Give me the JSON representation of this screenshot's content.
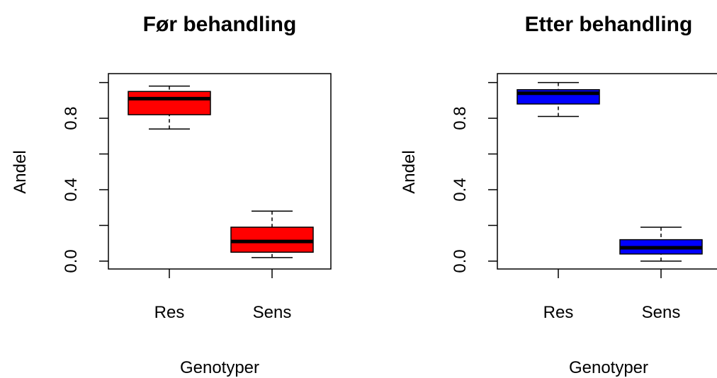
{
  "chart_data": [
    {
      "type": "boxplot",
      "title": "Før behandling",
      "xlabel": "Genotyper",
      "ylabel": "Andel",
      "categories": [
        "Res",
        "Sens"
      ],
      "color": "#ff0000",
      "boxes": [
        {
          "whislo": 0.74,
          "q1": 0.82,
          "med": 0.91,
          "q3": 0.95,
          "whishi": 0.98
        },
        {
          "whislo": 0.02,
          "q1": 0.05,
          "med": 0.11,
          "q3": 0.19,
          "whishi": 0.28
        }
      ],
      "ylim": [
        -0.044,
        1.05
      ],
      "yticks": [
        {
          "value": 0,
          "label": "0.0"
        },
        {
          "value": 0.2,
          "label": null
        },
        0.4,
        {
          "value": 0.6,
          "label": null
        },
        0.8,
        {
          "value": 1.0,
          "label": null
        }
      ]
    },
    {
      "type": "boxplot",
      "title": "Etter behandling",
      "xlabel": "Genotyper",
      "ylabel": "Andel",
      "categories": [
        "Res",
        "Sens"
      ],
      "color": "#0000ff",
      "boxes": [
        {
          "whislo": 0.81,
          "q1": 0.88,
          "med": 0.94,
          "q3": 0.96,
          "whishi": 1.0
        },
        {
          "whislo": 0.0,
          "q1": 0.04,
          "med": 0.075,
          "q3": 0.12,
          "whishi": 0.19
        }
      ],
      "ylim": [
        -0.044,
        1.05
      ],
      "yticks": [
        {
          "value": 0,
          "label": "0.0"
        },
        {
          "value": 0.2,
          "label": null
        },
        0.4,
        {
          "value": 0.6,
          "label": null
        },
        0.8,
        {
          "value": 1.0,
          "label": null
        }
      ]
    }
  ]
}
